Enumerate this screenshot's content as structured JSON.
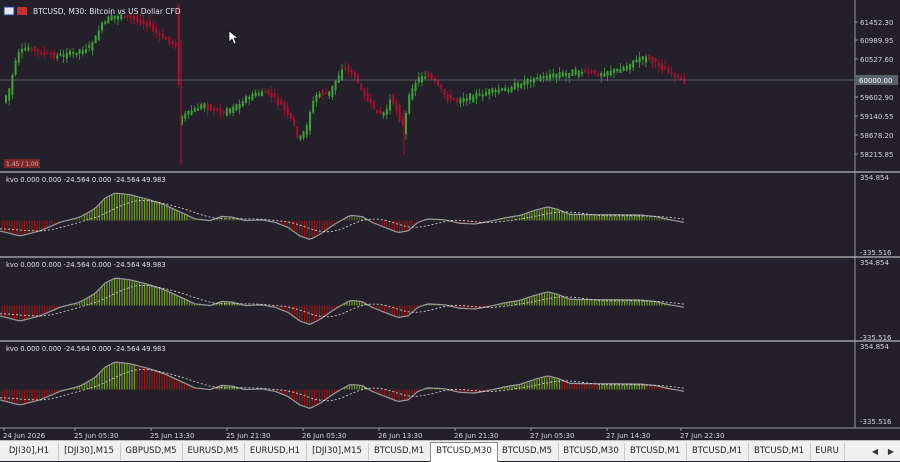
{
  "chart_header": {
    "symbol_text": "BTCUSD, M30:  Bitcoin vs US Dollar CFD",
    "current_price_label": "60000.00",
    "corner_badge": "1.45 / 1.00"
  },
  "price_axis": [
    "61452.30",
    "60989.95",
    "60527.60",
    "59602.90",
    "59140.55",
    "58678.20",
    "58215.85"
  ],
  "indicators": [
    {
      "label": "kvo  0.000 0.000 -24.564 0.000 -24.564 49.983",
      "top_value": "354.854",
      "bottom_value": "-335.516"
    },
    {
      "label": "kvo  0.000 0.000 -24.564 0.000 -24.564 49.983",
      "top_value": "354.854",
      "bottom_value": "-335.516"
    },
    {
      "label": "kvo  0.000 0.000 -24.564 0.000 -24.564 49.983",
      "top_value": "354.854",
      "bottom_value": "-335.516"
    }
  ],
  "time_axis": [
    "24 Jun 2026",
    "25 Jun 05:30",
    "25 Jun 13:30",
    "25 Jun 21:30",
    "26 Jun 05:30",
    "26 Jun 13:30",
    "26 Jun 21:30",
    "27 Jun 05:30",
    "27 Jun 14:30",
    "27 Jun 22:30"
  ],
  "tabs": [
    "DJI30],H1",
    "[DJI30],M15",
    "GBPUSD,M5",
    "EURUSD,M5",
    "EURUSD,H1",
    "[DJI30],M15",
    "BTCUSD,M1",
    "BTCUSD,M30",
    "BTCUSD,M5",
    "BTCUSD,M30",
    "BTCUSD,M1",
    "BTCUSD,M1",
    "BTCUSD,M1",
    "EURU"
  ],
  "active_tab": 7,
  "colors": {
    "background": "#232029",
    "bull_candle": "#3fa33a",
    "bear_candle": "#a8102f",
    "histogram_up": "#6f9b1e",
    "histogram_down": "#8c1a1a",
    "kvo_line": "#9a9a9a",
    "signal_line": "#e0e0e0"
  },
  "chart_data": {
    "type": "candlestick",
    "price_range": [
      58000,
      61700
    ],
    "indicator_range": [
      -335.516,
      354.854
    ]
  }
}
